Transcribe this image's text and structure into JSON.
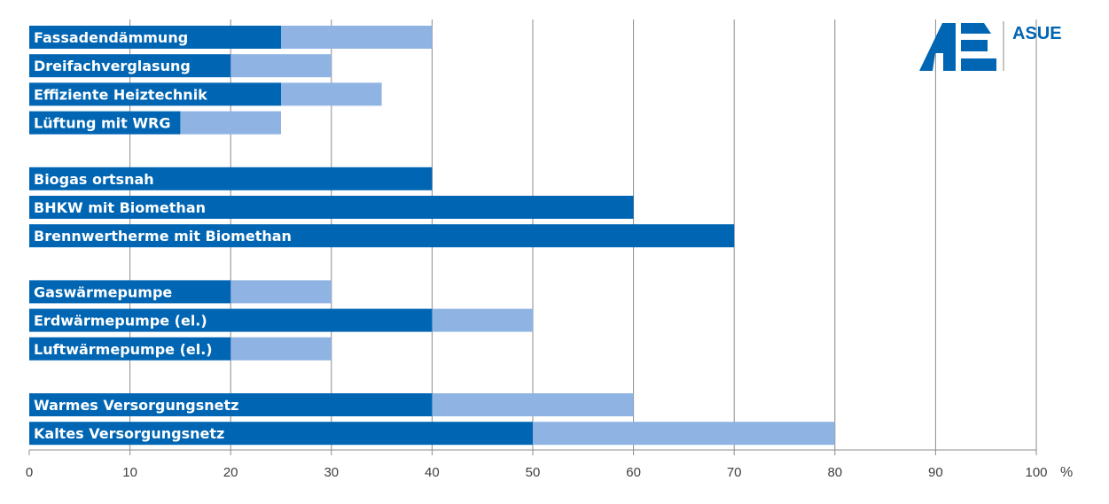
{
  "chart_data": {
    "type": "bar",
    "orientation": "horizontal",
    "stacked": "overlay",
    "categories": [
      "Fassadendämmung",
      "Dreifachverglasung",
      "Effiziente Heiztechnik",
      "Lüftung mit WRG",
      "Biogas ortsnah",
      "BHKW mit Biomethan",
      "Brennwertherme mit Biomethan",
      "Gaswärmepumpe",
      "Erdwärmepumpe (el.)",
      "Luftwärmepumpe (el.)",
      "Warmes Versorgungsnetz",
      "Kaltes Versorgungsnetz"
    ],
    "groups": [
      [
        0,
        1,
        2,
        3
      ],
      [
        4,
        5,
        6
      ],
      [
        7,
        8,
        9
      ],
      [
        10,
        11
      ]
    ],
    "series": [
      {
        "values": [
          25,
          20,
          25,
          15,
          40,
          60,
          70,
          20,
          40,
          20,
          40,
          50
        ]
      },
      {
        "values": [
          40,
          30,
          35,
          25,
          40,
          60,
          70,
          30,
          50,
          30,
          60,
          80
        ]
      }
    ],
    "xlim": [
      0,
      100
    ],
    "xticks": [
      0,
      10,
      20,
      30,
      40,
      50,
      60,
      70,
      80,
      90,
      100
    ],
    "xunit": "%",
    "grid": true,
    "colors": {
      "min": "#0065b3",
      "max": "#8fb4e3",
      "grid": "#8c8c8c"
    }
  },
  "logo": {
    "text": "ASUE",
    "color": "#0065b3"
  }
}
